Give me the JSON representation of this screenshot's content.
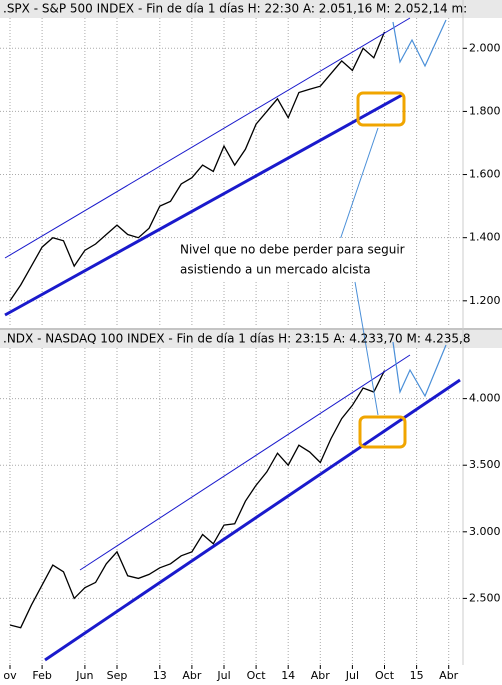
{
  "chart_data": [
    {
      "type": "line",
      "title": ".SPX - S&P 500 INDEX - Fin de día 1 días H: 22:30 A: 2.051,16 M: 2.052,14 m:",
      "series": [
        {
          "color": "#000000",
          "values": [
            1200,
            1250,
            1310,
            1370,
            1400,
            1390,
            1310,
            1360,
            1380,
            1410,
            1440,
            1410,
            1400,
            1430,
            1500,
            1515,
            1570,
            1590,
            1630,
            1610,
            1690,
            1630,
            1680,
            1760,
            1800,
            1840,
            1780,
            1860,
            1870,
            1880,
            1920,
            1960,
            1930,
            2000,
            1970,
            2052,
            null,
            null,
            null,
            null,
            null,
            null
          ]
        }
      ],
      "ylim": [
        1117,
        2096
      ],
      "yticks": [
        {
          "value": 1200,
          "label": "1.200"
        },
        {
          "value": 1400,
          "label": "1.400"
        },
        {
          "value": 1600,
          "label": "1.600"
        },
        {
          "value": 1800,
          "label": "1.800"
        },
        {
          "value": 2000,
          "label": "2.000"
        }
      ],
      "grid": true,
      "annotation": [
        "Nivel que no debe perder para seguir",
        "asistiendo a un mercado alcista"
      ]
    },
    {
      "type": "line",
      "title": ".NDX - NASDAQ 100 INDEX - Fin de día 1 días H: 23:15 A: 4.233,70 M: 4.235,8",
      "categories": [
        "ov",
        null,
        null,
        "Feb",
        null,
        null,
        null,
        "Jun",
        null,
        null,
        "Sep",
        null,
        null,
        null,
        "13",
        null,
        null,
        "Abr",
        null,
        null,
        "Jul",
        null,
        null,
        "Oct",
        null,
        null,
        "14",
        null,
        null,
        "Abr",
        null,
        null,
        "Jul",
        null,
        null,
        "Oct",
        null,
        null,
        "15",
        null,
        null,
        "Abr"
      ],
      "series": [
        {
          "color": "#000000",
          "values": [
            2300,
            2280,
            2450,
            2600,
            2750,
            2700,
            2500,
            2580,
            2620,
            2760,
            2850,
            2670,
            2650,
            2680,
            2730,
            2760,
            2820,
            2850,
            2980,
            2910,
            3050,
            3060,
            3230,
            3350,
            3450,
            3590,
            3500,
            3650,
            3600,
            3520,
            3700,
            3850,
            3950,
            4080,
            4050,
            4210,
            null,
            null,
            null,
            null,
            null,
            null
          ]
        }
      ],
      "ylim": [
        2000,
        4380
      ],
      "yticks": [
        {
          "value": 2500,
          "label": "2.500"
        },
        {
          "value": 3000,
          "label": "3.000"
        },
        {
          "value": 3500,
          "label": "3.500"
        },
        {
          "value": 4000,
          "label": "4.000"
        }
      ],
      "grid": true
    }
  ]
}
